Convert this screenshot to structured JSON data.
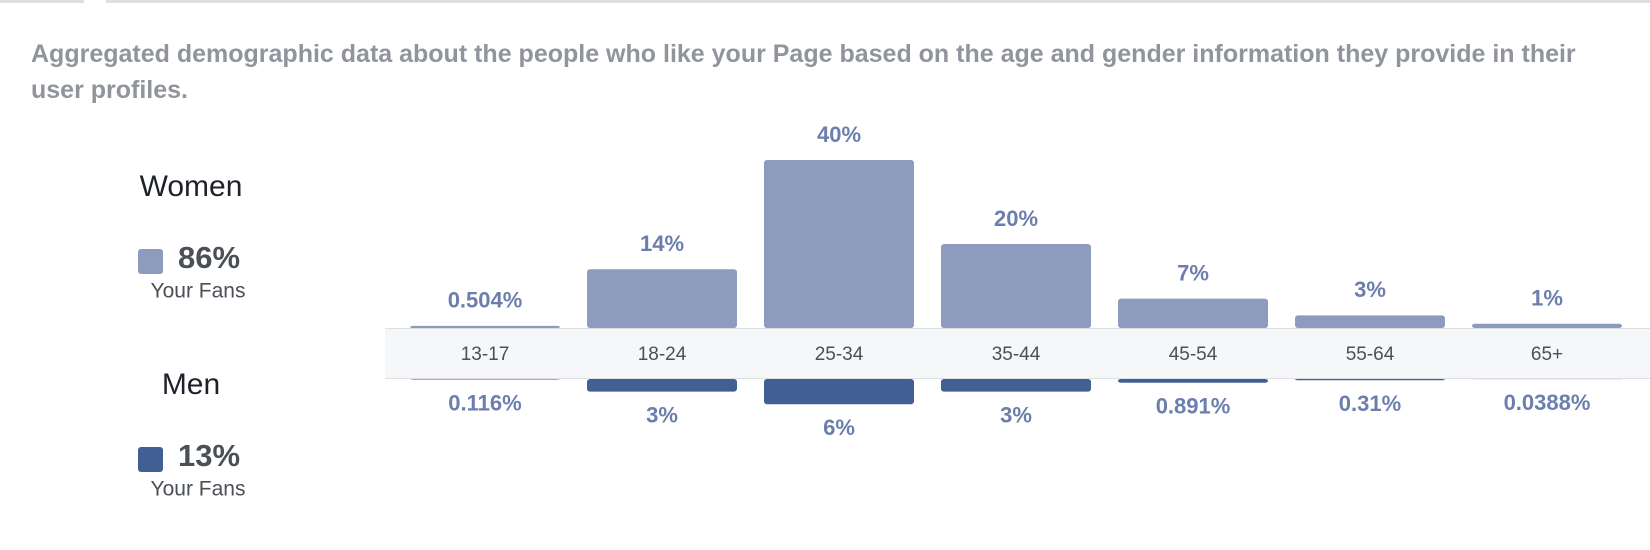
{
  "chart_data": {
    "type": "bar",
    "subtitle": "Aggregated demographic data about the people who like your Page based on the age and gender information they provide in their user profiles.",
    "categories": [
      "13-17",
      "18-24",
      "25-34",
      "35-44",
      "45-54",
      "55-64",
      "65+"
    ],
    "series": [
      {
        "name": "Women",
        "color": "#8d9bbe",
        "summary": {
          "value": 86,
          "label": "86%"
        },
        "caption": "Your Fans",
        "values": [
          0.504,
          14,
          40,
          20,
          7,
          3,
          1
        ],
        "value_labels": [
          "0.504%",
          "14%",
          "40%",
          "20%",
          "7%",
          "3%",
          "1%"
        ]
      },
      {
        "name": "Men",
        "color": "#425f94",
        "summary": {
          "value": 13,
          "label": "13%"
        },
        "caption": "Your Fans",
        "values": [
          0.116,
          3,
          6,
          3,
          0.891,
          0.31,
          0.0388
        ],
        "value_labels": [
          "0.116%",
          "3%",
          "6%",
          "3%",
          "0.891%",
          "0.31%",
          "0.0388%"
        ]
      }
    ]
  }
}
